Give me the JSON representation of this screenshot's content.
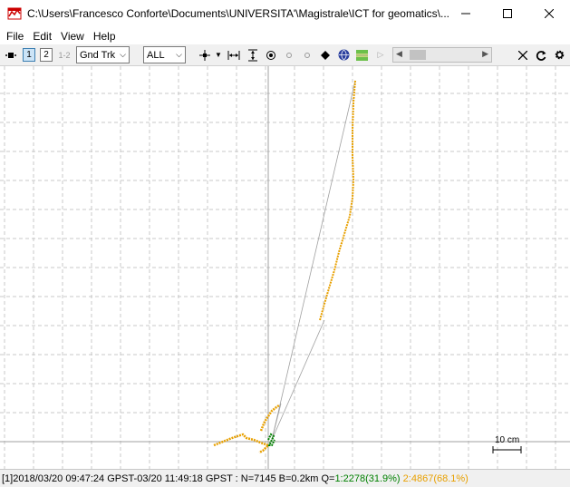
{
  "titlebar": {
    "title": "C:\\Users\\Francesco Conforte\\Documents\\UNIVERSITA'\\Magistrale\\ICT for geomatics\\..."
  },
  "menu": {
    "file": "File",
    "edit": "Edit",
    "view": "View",
    "help": "Help"
  },
  "toolbar": {
    "btn1": "1",
    "btn2": "2",
    "btn12": "1-2",
    "plot_type": "Gnd Trk",
    "sat_filter": "ALL"
  },
  "plot": {
    "scale_label": "10 cm",
    "colors": {
      "grid": "#c8c8c8",
      "track_q2": "#e8a000",
      "track_q1": "#008000",
      "connect": "#a0a0a0"
    }
  },
  "status": {
    "prefix": "[1]2018/03/20 09:47:24 GPST-03/20 11:49:18 GPST : N=7145 B=0.2km Q=",
    "q1": "1:2278(31.9%)",
    "q2": "2:4867(68.1%)"
  }
}
